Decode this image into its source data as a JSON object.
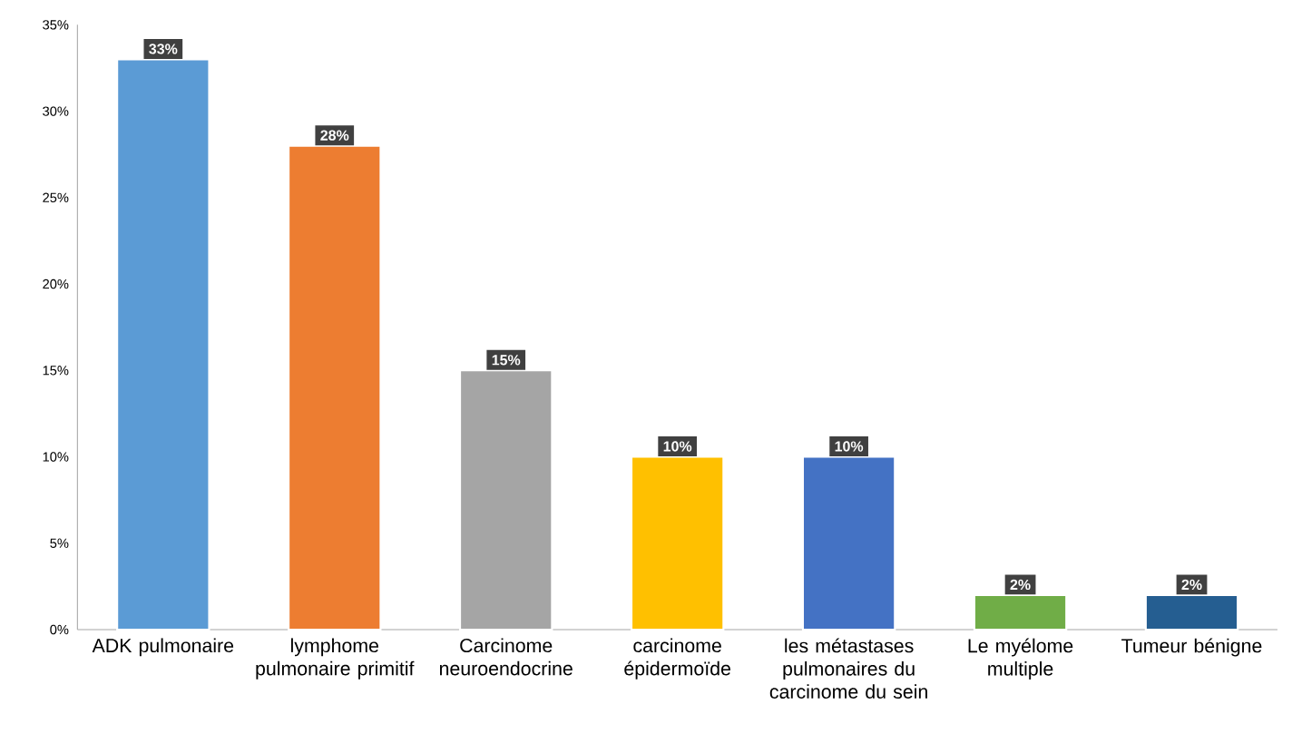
{
  "chart_data": {
    "type": "bar",
    "categories": [
      "ADK pulmonaire",
      "lymphome pulmonaire primitif",
      "Carcinome neuroendocrine",
      "carcinome épidermoïde",
      "les métastases pulmonaires du carcinome du sein",
      "Le myélome multiple",
      "Tumeur bénigne"
    ],
    "values": [
      33,
      28,
      15,
      10,
      10,
      2,
      2
    ],
    "colors": [
      "#5b9bd5",
      "#ed7d31",
      "#a5a5a5",
      "#ffc000",
      "#4472c4",
      "#70ad47",
      "#255e91"
    ],
    "value_labels": [
      "33%",
      "28%",
      "15%",
      "10%",
      "10%",
      "2%",
      "2%"
    ],
    "ylim": [
      0,
      35
    ],
    "yticks": [
      {
        "value": 0,
        "label": "0%"
      },
      {
        "value": 5,
        "label": "5%"
      },
      {
        "value": 10,
        "label": "10%"
      },
      {
        "value": 15,
        "label": "15%"
      },
      {
        "value": 20,
        "label": "20%"
      },
      {
        "value": 25,
        "label": "25%"
      },
      {
        "value": 30,
        "label": "30%"
      },
      {
        "value": 35,
        "label": "35%"
      }
    ],
    "grid": false
  }
}
